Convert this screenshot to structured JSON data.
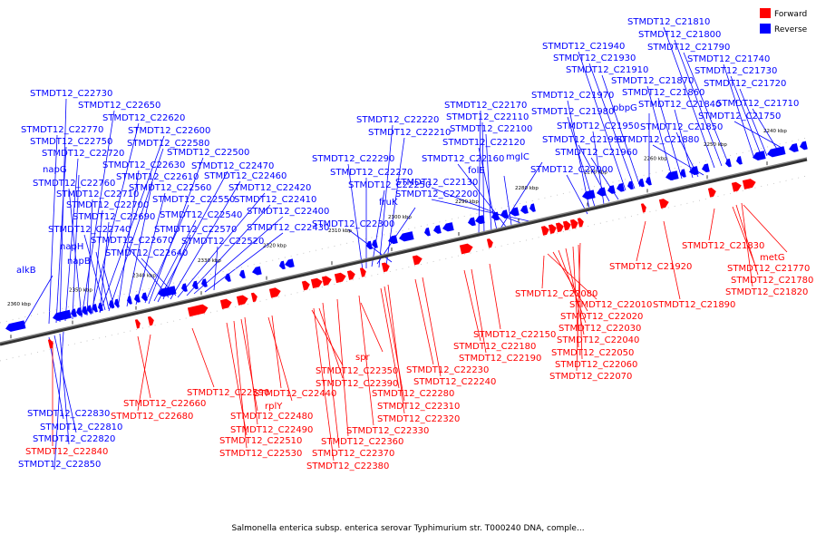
{
  "caption": "Salmonella enterica subsp. enterica serovar Typhimurium str. T000240 DNA, comple...",
  "legend": [
    {
      "label": "Forward",
      "color": "#ff0000"
    },
    {
      "label": "Reverse",
      "color": "#0000ff"
    }
  ],
  "colors": {
    "forward": "#ff0000",
    "reverse": "#0000ff",
    "forward_line": "#ff0000",
    "reverse_line": "#0000ff",
    "axis": "#888888"
  },
  "ticks": [
    "2360 kbp",
    "2350 kbp",
    "2340 kbp",
    "2330 kbp",
    "2320 kbp",
    "2310 kbp",
    "2300 kbp",
    "2290 kbp",
    "2280 kbp",
    "2270 kbp",
    "2260 kbp",
    "2250 kbp",
    "2240 kbp"
  ],
  "reverse_labels": [
    "STMDT12_C21810",
    "STMDT12_C21800",
    "STMDT12_C21940",
    "STMDT12_C21790",
    "STMDT12_C21930",
    "STMDT12_C21740",
    "STMDT12_C21910",
    "STMDT12_C21730",
    "STMDT12_C21870",
    "STMDT12_C21720",
    "STMDT12_C22730",
    "STMDT12_C21970",
    "STMDT12_C21860",
    "STMDT12_C22170",
    "STMDT12_C21710",
    "STMDT12_C22650",
    "pbpG",
    "STMDT12_C21840",
    "STMDT12_C21980",
    "STMDT12_C22110",
    "STMDT12_C21750",
    "STMDT12_C22620",
    "STMDT12_C22220",
    "STMDT12_C21950",
    "STMDT12_C21850",
    "STMDT12_C22770",
    "STMDT12_C22600",
    "STMDT12_C22210",
    "STMDT12_C22100",
    "STMDT12_C21990",
    "STMDT12_C21880",
    "STMDT12_C22750",
    "STMDT12_C22580",
    "STMDT12_C22120",
    "STMDT12_C21960",
    "STMDT12_C22720",
    "STMDT12_C22500",
    "mglC",
    "STMDT12_C22630",
    "STMDT12_C22290",
    "STMDT12_C22160",
    "STMDT12_C22470",
    "napG",
    "STMDT12_C22610",
    "STMDT12_C22000",
    "STMDT12_C22270",
    "folE",
    "STMDT12_C22460",
    "STMDT12_C22760",
    "STMDT12_C22560",
    "STMDT12_C22420",
    "STMDT12_C22250",
    "STMDT12_C22130",
    "STMDT12_C22710",
    "STMDT12_C22550",
    "STMDT12_C22410",
    "STMDT12_C22200",
    "STMDT12_C22700",
    "fruK",
    "STMDT12_C22540",
    "STMDT12_C22400",
    "STMDT12_C22690",
    "STMDT12_C22740",
    "STMDT12_C22570",
    "STMDT12_C22430",
    "STMDT12_C22300",
    "napH",
    "STMDT12_C22670",
    "STMDT12_C22520",
    "napB",
    "STMDT12_C22640",
    "alkB",
    "STMDT12_C22830",
    "STMDT12_C22810",
    "STMDT12_C22820",
    "STMDT12_C22850"
  ],
  "forward_labels": [
    "STMDT12_C21830",
    "metG",
    "STMDT12_C21920",
    "STMDT12_C21770",
    "STMDT12_C21780",
    "STMDT12_C21820",
    "STMDT12_C22080",
    "STMDT12_C21890",
    "STMDT12_C22010",
    "STMDT12_C22020",
    "STMDT12_C22030",
    "STMDT12_C22150",
    "STMDT12_C22040",
    "STMDT12_C22180",
    "STMDT12_C22050",
    "STMDT12_C22190",
    "spr",
    "STMDT12_C22060",
    "STMDT12_C22350",
    "STMDT12_C22230",
    "STMDT12_C22070",
    "STMDT12_C22390",
    "STMDT12_C22240",
    "STMDT12_C22590",
    "STMDT12_C22440",
    "STMDT12_C22280",
    "STMDT12_C22660",
    "rplY",
    "STMDT12_C22310",
    "STMDT12_C22680",
    "STMDT12_C22480",
    "STMDT12_C22320",
    "STMDT12_C22490",
    "STMDT12_C22330",
    "STMDT12_C22510",
    "STMDT12_C22360",
    "STMDT12_C22530",
    "STMDT12_C22370",
    "STMDT12_C22380",
    "STMDT12_C22840"
  ]
}
